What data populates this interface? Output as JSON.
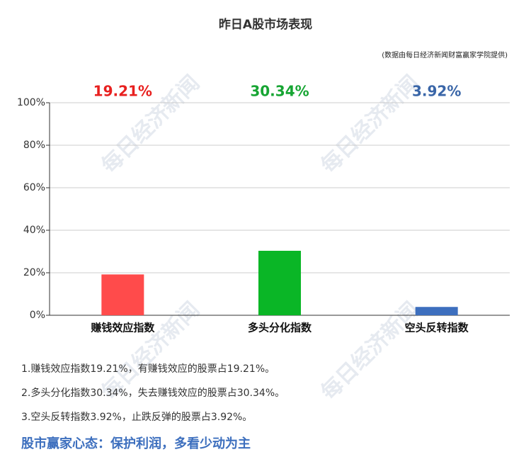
{
  "chart_data": {
    "type": "bar",
    "title": "昨日A股市场表现",
    "subtitle": "(数据由每日经济新闻财富赢家学院提供)",
    "categories": [
      "赚钱效应指数",
      "多头分化指数",
      "空头反转指数"
    ],
    "values": [
      19.21,
      30.34,
      3.92
    ],
    "value_labels": [
      "19.21%",
      "30.34%",
      "3.92%"
    ],
    "colors": [
      "#ff4b4b",
      "#0ab626",
      "#3d6fbe"
    ],
    "label_colors": [
      "#e8201f",
      "#17a533",
      "#3a66a8"
    ],
    "ylim": [
      0,
      100
    ],
    "yticks": [
      {
        "value": 0,
        "label": "0%"
      },
      {
        "value": 20,
        "label": "20%"
      },
      {
        "value": 40,
        "label": "40%"
      },
      {
        "value": 60,
        "label": "60%"
      },
      {
        "value": 80,
        "label": "80%"
      },
      {
        "value": 100,
        "label": "100%"
      }
    ],
    "grid": true
  },
  "watermark": "每日经济新闻",
  "notes": [
    "1.赚钱效应指数19.21%，有赚钱效应的股票占19.21%。",
    "2.多头分化指数30.34%，失去赚钱效应的股票占30.34%。",
    "3.空头反转指数3.92%，止跌反弹的股票占3.92%。"
  ],
  "headline": "股市赢家心态：保护利润，多看少动为主"
}
